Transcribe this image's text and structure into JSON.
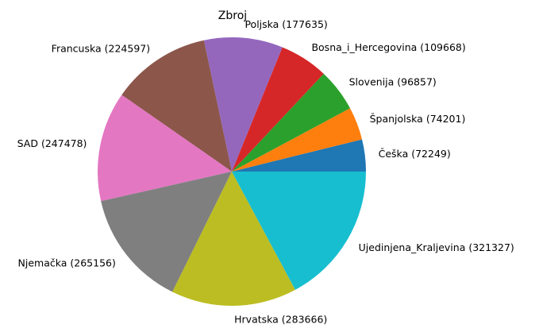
{
  "chart_data": {
    "type": "pie",
    "title": "Zbroj",
    "start_angle_deg": 0,
    "direction": "counterclockwise",
    "slices": [
      {
        "label": "Češka (72249)",
        "category": "Češka",
        "value": 72249,
        "color": "#1f77b4"
      },
      {
        "label": "Španjolska (74201)",
        "category": "Španjolska",
        "value": 74201,
        "color": "#ff7f0e"
      },
      {
        "label": "Slovenija (96857)",
        "category": "Slovenija",
        "value": 96857,
        "color": "#2ca02c"
      },
      {
        "label": "Bosna_i_Hercegovina (109668)",
        "category": "Bosna_i_Hercegovina",
        "value": 109668,
        "color": "#d62728"
      },
      {
        "label": "Poljska (177635)",
        "category": "Poljska",
        "value": 177635,
        "color": "#9467bd"
      },
      {
        "label": "Francuska (224597)",
        "category": "Francuska",
        "value": 224597,
        "color": "#8c564b"
      },
      {
        "label": "SAD (247478)",
        "category": "SAD",
        "value": 247478,
        "color": "#e377c2"
      },
      {
        "label": "Njemačka (265156)",
        "category": "Njemačka",
        "value": 265156,
        "color": "#7f7f7f"
      },
      {
        "label": "Hrvatska (283666)",
        "category": "Hrvatska",
        "value": 283666,
        "color": "#bcbd22"
      },
      {
        "label": "Ujedinjena_Kraljevina (321327)",
        "category": "Ujedinjena_Kraljevina",
        "value": 321327,
        "color": "#17becf"
      }
    ]
  }
}
